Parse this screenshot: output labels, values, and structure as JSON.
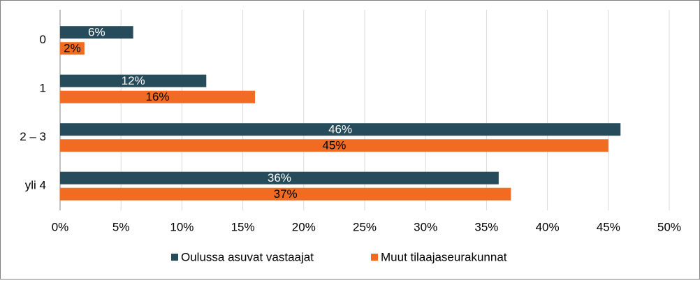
{
  "chart_data": {
    "type": "hbar",
    "categories": [
      "0",
      "1",
      "2 – 3",
      "yli 4"
    ],
    "series": [
      {
        "name": "Oulussa asuvat vastaajat",
        "color": "#264c5b",
        "values": [
          6,
          12,
          46,
          36
        ],
        "value_labels": [
          "6%",
          "12%",
          "46%",
          "36%"
        ]
      },
      {
        "name": "Muut tilaajaseurakunnat",
        "color": "#f26b22",
        "values": [
          2,
          16,
          45,
          37
        ],
        "value_labels": [
          "2%",
          "16%",
          "45%",
          "37%"
        ]
      }
    ],
    "xlim": [
      0,
      50
    ],
    "xticks": [
      {
        "value": 0,
        "label": "0%"
      },
      {
        "value": 5,
        "label": "5%"
      },
      {
        "value": 10,
        "label": "10%"
      },
      {
        "value": 15,
        "label": "15%"
      },
      {
        "value": 20,
        "label": "20%"
      },
      {
        "value": 25,
        "label": "25%"
      },
      {
        "value": 30,
        "label": "30%"
      },
      {
        "value": 35,
        "label": "35%"
      },
      {
        "value": 40,
        "label": "40%"
      },
      {
        "value": 45,
        "label": "45%"
      },
      {
        "value": 50,
        "label": "50%"
      }
    ],
    "grid": true,
    "legend": "bottom"
  }
}
